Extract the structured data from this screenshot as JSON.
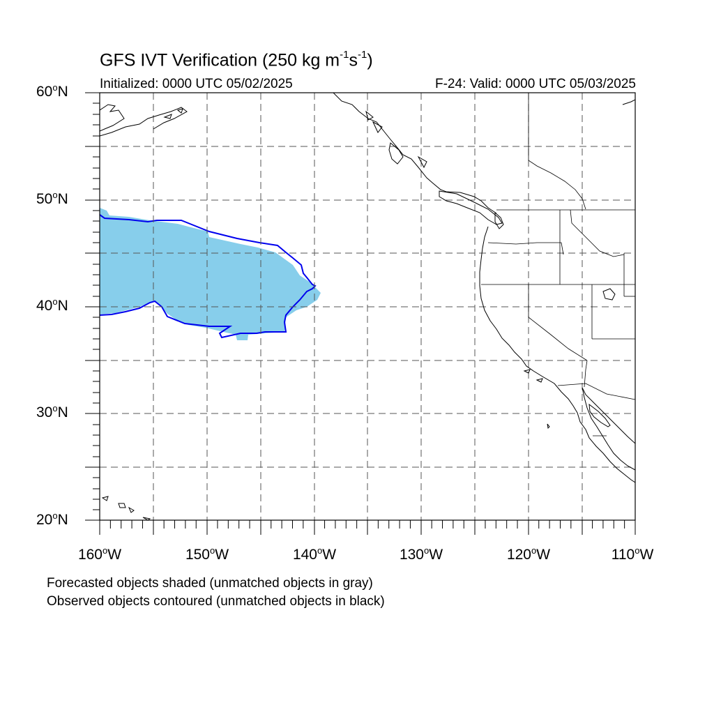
{
  "title": {
    "main": "GFS IVT Verification (250 kg m",
    "sup1": "-1",
    "mid": "s",
    "sup2": "-1",
    "close": ")"
  },
  "subtitle_left": "Initialized: 0000 UTC 05/02/2025",
  "subtitle_right": "F-24: Valid: 0000 UTC 05/03/2025",
  "lat_labels": [
    {
      "num": "60",
      "deg": "o",
      "hem": "N"
    },
    {
      "num": "50",
      "deg": "o",
      "hem": "N"
    },
    {
      "num": "40",
      "deg": "o",
      "hem": "N"
    },
    {
      "num": "30",
      "deg": "o",
      "hem": "N"
    },
    {
      "num": "20",
      "deg": "o",
      "hem": "N"
    }
  ],
  "lon_labels": [
    {
      "num": "160",
      "deg": "o",
      "hem": "W"
    },
    {
      "num": "150",
      "deg": "o",
      "hem": "W"
    },
    {
      "num": "140",
      "deg": "o",
      "hem": "W"
    },
    {
      "num": "130",
      "deg": "o",
      "hem": "W"
    },
    {
      "num": "120",
      "deg": "o",
      "hem": "W"
    },
    {
      "num": "110",
      "deg": "o",
      "hem": "W"
    }
  ],
  "legend_note_1": "Forecasted objects shaded (unmatched objects in gray)",
  "legend_note_2": "Observed objects contoured (unmatched objects in black)",
  "colors": {
    "forecast_fill": "#87ceeb",
    "observed_contour": "#0000ee",
    "coastline": "#000000",
    "grid": "#555555"
  },
  "map_extent": {
    "lon_min": -160,
    "lon_max": -110,
    "lat_min": 20,
    "lat_max": 60
  }
}
